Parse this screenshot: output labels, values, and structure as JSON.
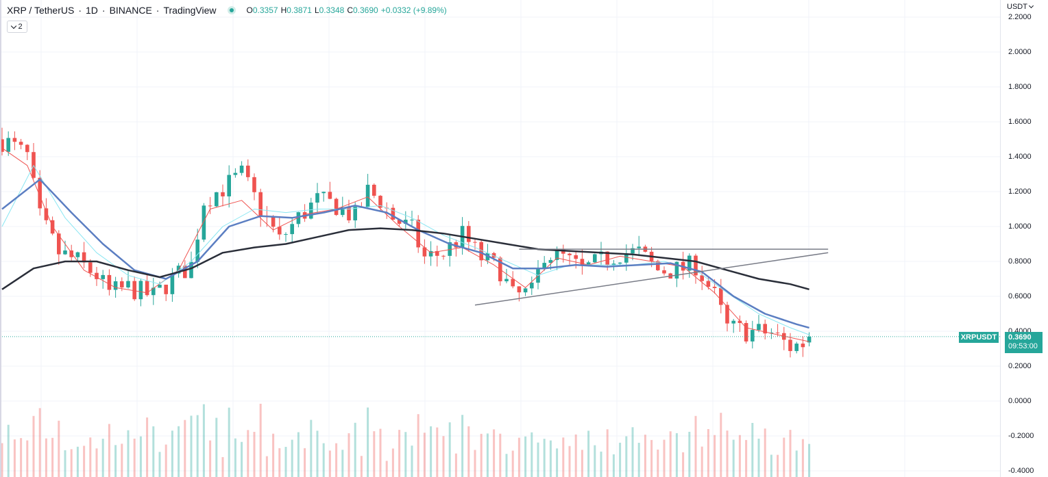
{
  "header": {
    "symbol": "XRP / TetherUS",
    "interval": "1D",
    "exchange": "BINANCE",
    "source": "TradingView",
    "sep": "·",
    "ohlc": {
      "o_label": "O",
      "o_value": "0.3357",
      "h_label": "H",
      "h_value": "0.3871",
      "l_label": "L",
      "l_value": "0.3348",
      "c_label": "C",
      "c_value": "0.3690",
      "change": "+0.0332 (+9.89%)"
    },
    "indicator_count": "2"
  },
  "price_axis": {
    "currency": "USDT",
    "tick_labels": [
      "2.2000",
      "2.0000",
      "1.8000",
      "1.6000",
      "1.4000",
      "1.2000",
      "1.0000",
      "0.8000",
      "0.6000",
      "0.4000",
      "0.2000",
      "0.0000",
      "-0.2000",
      "-0.4000"
    ]
  },
  "last_price": {
    "symbol_tag": "XRPUSDT",
    "price": "0.3690",
    "countdown": "09:53:00"
  },
  "colors": {
    "up": "#26a69a",
    "down": "#ef5350",
    "ma_short": "#ef5350",
    "ma_mid_light": "#89e6f2",
    "ma_mid": "#5b7ec2",
    "ma_long": "#2a2e39",
    "trendline": "#787b86"
  },
  "chart_data": {
    "type": "candlestick",
    "symbol": "XRPUSDT",
    "interval": "1D",
    "ylim": [
      -0.4,
      2.2
    ],
    "grid": true,
    "last_close": 0.369,
    "price_path": [
      {
        "t": 0,
        "p": 1.5
      },
      {
        "t": 2,
        "p": 1.45
      },
      {
        "t": 4,
        "p": 1.4
      },
      {
        "t": 6,
        "p": 1.05
      },
      {
        "t": 9,
        "p": 0.85
      },
      {
        "t": 12,
        "p": 0.8
      },
      {
        "t": 15,
        "p": 0.72
      },
      {
        "t": 17,
        "p": 0.62
      },
      {
        "t": 20,
        "p": 0.65
      },
      {
        "t": 24,
        "p": 0.6
      },
      {
        "t": 27,
        "p": 0.7
      },
      {
        "t": 30,
        "p": 0.78
      },
      {
        "t": 32,
        "p": 1.15
      },
      {
        "t": 35,
        "p": 1.22
      },
      {
        "t": 38,
        "p": 1.3
      },
      {
        "t": 41,
        "p": 1.1
      },
      {
        "t": 44,
        "p": 0.92
      },
      {
        "t": 47,
        "p": 1.05
      },
      {
        "t": 50,
        "p": 1.15
      },
      {
        "t": 53,
        "p": 1.12
      },
      {
        "t": 56,
        "p": 1.05
      },
      {
        "t": 58,
        "p": 1.2
      },
      {
        "t": 60,
        "p": 1.15
      },
      {
        "t": 62,
        "p": 1.05
      },
      {
        "t": 65,
        "p": 0.98
      },
      {
        "t": 67,
        "p": 0.82
      },
      {
        "t": 70,
        "p": 0.85
      },
      {
        "t": 73,
        "p": 0.95
      },
      {
        "t": 76,
        "p": 0.82
      },
      {
        "t": 79,
        "p": 0.75
      },
      {
        "t": 81,
        "p": 0.6
      },
      {
        "t": 84,
        "p": 0.62
      },
      {
        "t": 86,
        "p": 0.85
      },
      {
        "t": 89,
        "p": 0.82
      },
      {
        "t": 92,
        "p": 0.75
      },
      {
        "t": 95,
        "p": 0.8
      },
      {
        "t": 98,
        "p": 0.85
      },
      {
        "t": 101,
        "p": 0.85
      },
      {
        "t": 104,
        "p": 0.75
      },
      {
        "t": 107,
        "p": 0.75
      },
      {
        "t": 110,
        "p": 0.78
      },
      {
        "t": 113,
        "p": 0.6
      },
      {
        "t": 115,
        "p": 0.42
      },
      {
        "t": 118,
        "p": 0.4
      },
      {
        "t": 122,
        "p": 0.39
      },
      {
        "t": 125,
        "p": 0.31
      },
      {
        "t": 127,
        "p": 0.33
      },
      {
        "t": 128,
        "p": 0.369
      }
    ],
    "moving_averages": [
      {
        "color_key": "ma_short",
        "width": 1,
        "points": [
          {
            "t": 0,
            "p": 1.45
          },
          {
            "t": 4,
            "p": 1.35
          },
          {
            "t": 8,
            "p": 1.0
          },
          {
            "t": 13,
            "p": 0.75
          },
          {
            "t": 18,
            "p": 0.65
          },
          {
            "t": 23,
            "p": 0.62
          },
          {
            "t": 28,
            "p": 0.75
          },
          {
            "t": 33,
            "p": 1.1
          },
          {
            "t": 38,
            "p": 1.15
          },
          {
            "t": 43,
            "p": 0.98
          },
          {
            "t": 48,
            "p": 1.07
          },
          {
            "t": 53,
            "p": 1.1
          },
          {
            "t": 58,
            "p": 1.17
          },
          {
            "t": 63,
            "p": 1.0
          },
          {
            "t": 68,
            "p": 0.85
          },
          {
            "t": 73,
            "p": 0.88
          },
          {
            "t": 78,
            "p": 0.78
          },
          {
            "t": 83,
            "p": 0.65
          },
          {
            "t": 88,
            "p": 0.82
          },
          {
            "t": 93,
            "p": 0.78
          },
          {
            "t": 98,
            "p": 0.83
          },
          {
            "t": 103,
            "p": 0.8
          },
          {
            "t": 108,
            "p": 0.77
          },
          {
            "t": 113,
            "p": 0.62
          },
          {
            "t": 118,
            "p": 0.42
          },
          {
            "t": 123,
            "p": 0.38
          },
          {
            "t": 128,
            "p": 0.34
          }
        ]
      },
      {
        "color_key": "ma_mid_light",
        "width": 1,
        "points": [
          {
            "t": 0,
            "p": 1.0
          },
          {
            "t": 5,
            "p": 1.35
          },
          {
            "t": 10,
            "p": 1.05
          },
          {
            "t": 15,
            "p": 0.85
          },
          {
            "t": 20,
            "p": 0.72
          },
          {
            "t": 25,
            "p": 0.67
          },
          {
            "t": 30,
            "p": 0.8
          },
          {
            "t": 35,
            "p": 1.0
          },
          {
            "t": 40,
            "p": 1.1
          },
          {
            "t": 45,
            "p": 1.08
          },
          {
            "t": 50,
            "p": 1.1
          },
          {
            "t": 55,
            "p": 1.1
          },
          {
            "t": 60,
            "p": 1.12
          },
          {
            "t": 65,
            "p": 1.05
          },
          {
            "t": 70,
            "p": 0.95
          },
          {
            "t": 75,
            "p": 0.88
          },
          {
            "t": 80,
            "p": 0.8
          },
          {
            "t": 85,
            "p": 0.72
          },
          {
            "t": 90,
            "p": 0.78
          },
          {
            "t": 95,
            "p": 0.78
          },
          {
            "t": 100,
            "p": 0.78
          },
          {
            "t": 105,
            "p": 0.8
          },
          {
            "t": 110,
            "p": 0.75
          },
          {
            "t": 115,
            "p": 0.62
          },
          {
            "t": 120,
            "p": 0.5
          },
          {
            "t": 125,
            "p": 0.42
          },
          {
            "t": 128,
            "p": 0.38
          }
        ]
      },
      {
        "color_key": "ma_mid",
        "width": 2.5,
        "points": [
          {
            "t": 0,
            "p": 1.1
          },
          {
            "t": 6,
            "p": 1.27
          },
          {
            "t": 11,
            "p": 1.08
          },
          {
            "t": 16,
            "p": 0.9
          },
          {
            "t": 21,
            "p": 0.75
          },
          {
            "t": 26,
            "p": 0.7
          },
          {
            "t": 31,
            "p": 0.8
          },
          {
            "t": 36,
            "p": 1.0
          },
          {
            "t": 41,
            "p": 1.06
          },
          {
            "t": 46,
            "p": 1.05
          },
          {
            "t": 51,
            "p": 1.08
          },
          {
            "t": 56,
            "p": 1.12
          },
          {
            "t": 61,
            "p": 1.08
          },
          {
            "t": 66,
            "p": 0.98
          },
          {
            "t": 71,
            "p": 0.9
          },
          {
            "t": 76,
            "p": 0.85
          },
          {
            "t": 81,
            "p": 0.76
          },
          {
            "t": 86,
            "p": 0.76
          },
          {
            "t": 91,
            "p": 0.78
          },
          {
            "t": 96,
            "p": 0.77
          },
          {
            "t": 101,
            "p": 0.78
          },
          {
            "t": 106,
            "p": 0.79
          },
          {
            "t": 111,
            "p": 0.74
          },
          {
            "t": 116,
            "p": 0.6
          },
          {
            "t": 121,
            "p": 0.5
          },
          {
            "t": 126,
            "p": 0.44
          },
          {
            "t": 128,
            "p": 0.42
          }
        ]
      },
      {
        "color_key": "ma_long",
        "width": 2.5,
        "points": [
          {
            "t": 0,
            "p": 0.64
          },
          {
            "t": 5,
            "p": 0.76
          },
          {
            "t": 10,
            "p": 0.8
          },
          {
            "t": 15,
            "p": 0.8
          },
          {
            "t": 20,
            "p": 0.75
          },
          {
            "t": 25,
            "p": 0.71
          },
          {
            "t": 30,
            "p": 0.76
          },
          {
            "t": 35,
            "p": 0.85
          },
          {
            "t": 40,
            "p": 0.88
          },
          {
            "t": 45,
            "p": 0.9
          },
          {
            "t": 50,
            "p": 0.94
          },
          {
            "t": 55,
            "p": 0.98
          },
          {
            "t": 60,
            "p": 0.99
          },
          {
            "t": 65,
            "p": 0.98
          },
          {
            "t": 70,
            "p": 0.96
          },
          {
            "t": 75,
            "p": 0.93
          },
          {
            "t": 80,
            "p": 0.9
          },
          {
            "t": 85,
            "p": 0.87
          },
          {
            "t": 90,
            "p": 0.86
          },
          {
            "t": 95,
            "p": 0.85
          },
          {
            "t": 100,
            "p": 0.84
          },
          {
            "t": 105,
            "p": 0.82
          },
          {
            "t": 110,
            "p": 0.8
          },
          {
            "t": 115,
            "p": 0.75
          },
          {
            "t": 120,
            "p": 0.7
          },
          {
            "t": 125,
            "p": 0.67
          },
          {
            "t": 128,
            "p": 0.64
          }
        ]
      }
    ],
    "trendlines": [
      {
        "name": "horizontal-resistance",
        "from": {
          "t": 82,
          "p": 0.87
        },
        "to": {
          "t": 131,
          "p": 0.87
        }
      },
      {
        "name": "ascending-support",
        "from": {
          "t": 75,
          "p": 0.55
        },
        "to": {
          "t": 131,
          "p": 0.85
        }
      }
    ]
  }
}
